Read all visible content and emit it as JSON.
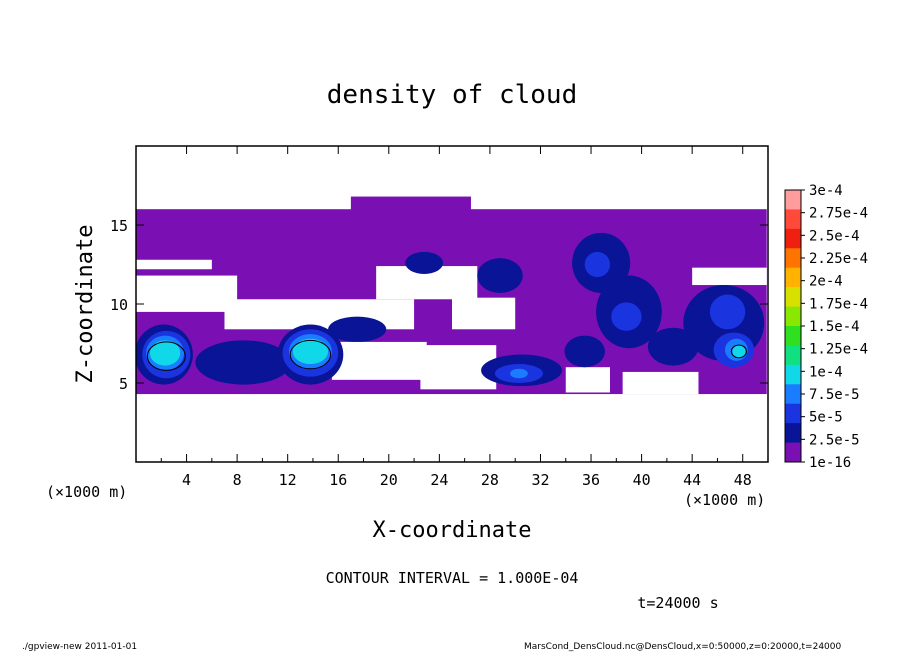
{
  "chart_data": {
    "type": "heatmap",
    "title": "density of cloud",
    "xlabel": "X-coordinate",
    "ylabel": "Z-coordinate",
    "x_unit": "(×1000 m)",
    "x_unit_right": "(×1000 m)",
    "xlim": [
      0,
      50
    ],
    "ylim": [
      0,
      20
    ],
    "x_ticks": [
      "4",
      "8",
      "12",
      "16",
      "20",
      "24",
      "28",
      "32",
      "36",
      "40",
      "44",
      "48"
    ],
    "y_ticks": [
      "5",
      "10",
      "15"
    ],
    "colorbar": {
      "labels": [
        "3e-4",
        "2.75e-4",
        "2.5e-4",
        "2.25e-4",
        "2e-4",
        "1.75e-4",
        "1.5e-4",
        "1.25e-4",
        "1e-4",
        "7.5e-5",
        "5e-5",
        "2.5e-5",
        "1e-16"
      ],
      "colors": [
        "#ff9c9c",
        "#ff4a3a",
        "#f02010",
        "#ff7400",
        "#ffb300",
        "#d8e000",
        "#8ae800",
        "#2ee020",
        "#10e080",
        "#10d8e8",
        "#1a7cff",
        "#1a34e0",
        "#0a1496",
        "#7a10b4"
      ]
    },
    "contour_interval": "CONTOUR INTERVAL = 1.000E-04",
    "time_label": "t=24000 s",
    "regions": [
      {
        "kind": "base",
        "level": 0,
        "xr": [
          0,
          49.9
        ],
        "zr": [
          4.3,
          16
        ]
      },
      {
        "kind": "base",
        "level": 0,
        "xr": [
          17,
          26.5
        ],
        "zr": [
          15.7,
          16.8
        ]
      },
      {
        "kind": "gap",
        "xr": [
          0,
          8
        ],
        "zr": [
          9.5,
          11.8
        ]
      },
      {
        "kind": "gap",
        "xr": [
          7,
          22
        ],
        "zr": [
          8.4,
          10.3
        ]
      },
      {
        "kind": "gap",
        "xr": [
          19,
          27
        ],
        "zr": [
          10.3,
          12.4
        ]
      },
      {
        "kind": "gap",
        "xr": [
          25,
          30
        ],
        "zr": [
          8.4,
          10.4
        ]
      },
      {
        "kind": "gap",
        "xr": [
          15.5,
          23
        ],
        "zr": [
          5.2,
          7.6
        ]
      },
      {
        "kind": "gap",
        "xr": [
          22.5,
          28.5
        ],
        "zr": [
          4.6,
          7.4
        ]
      },
      {
        "kind": "gap",
        "xr": [
          34,
          37.5
        ],
        "zr": [
          4.4,
          6.0
        ]
      },
      {
        "kind": "gap",
        "xr": [
          38.5,
          44.5
        ],
        "zr": [
          4.3,
          5.7
        ]
      },
      {
        "kind": "gap",
        "xr": [
          44,
          49.9
        ],
        "zr": [
          11.2,
          12.3
        ]
      },
      {
        "kind": "gap",
        "xr": [
          0,
          6
        ],
        "zr": [
          12.2,
          12.8
        ]
      },
      {
        "kind": "blob",
        "level": 1,
        "cx": 2.2,
        "cz": 6.8,
        "rx": 2.3,
        "rz": 1.9
      },
      {
        "kind": "blob",
        "level": 1,
        "cx": 13.8,
        "cz": 6.8,
        "rx": 2.6,
        "rz": 1.9
      },
      {
        "kind": "blob",
        "level": 1,
        "cx": 8.5,
        "cz": 6.3,
        "rx": 3.8,
        "rz": 1.4
      },
      {
        "kind": "blob",
        "level": 1,
        "cx": 30.5,
        "cz": 5.8,
        "rx": 3.2,
        "rz": 1.0
      },
      {
        "kind": "blob",
        "level": 1,
        "cx": 39,
        "cz": 9.5,
        "rx": 2.6,
        "rz": 2.3
      },
      {
        "kind": "blob",
        "level": 1,
        "cx": 46.5,
        "cz": 8.8,
        "rx": 3.2,
        "rz": 2.4
      },
      {
        "kind": "blob",
        "level": 1,
        "cx": 42.5,
        "cz": 7.3,
        "rx": 2.0,
        "rz": 1.2
      },
      {
        "kind": "blob",
        "level": 1,
        "cx": 36.8,
        "cz": 12.6,
        "rx": 2.3,
        "rz": 1.9
      },
      {
        "kind": "blob",
        "level": 1,
        "cx": 35.5,
        "cz": 7.0,
        "rx": 1.6,
        "rz": 1.0
      },
      {
        "kind": "blob",
        "level": 1,
        "cx": 17.5,
        "cz": 8.4,
        "rx": 2.3,
        "rz": 0.8
      },
      {
        "kind": "blob",
        "level": 1,
        "cx": 22.8,
        "cz": 12.6,
        "rx": 1.5,
        "rz": 0.7
      },
      {
        "kind": "blob",
        "level": 1,
        "cx": 28.8,
        "cz": 11.8,
        "rx": 1.8,
        "rz": 1.1
      },
      {
        "kind": "blob",
        "level": 2,
        "cx": 2.4,
        "cz": 6.8,
        "rx": 1.9,
        "rz": 1.5
      },
      {
        "kind": "blob",
        "level": 2,
        "cx": 13.8,
        "cz": 6.9,
        "rx": 2.2,
        "rz": 1.5
      },
      {
        "kind": "blob",
        "level": 2,
        "cx": 47.3,
        "cz": 7.1,
        "rx": 1.6,
        "rz": 1.1
      },
      {
        "kind": "blob",
        "level": 2,
        "cx": 30.3,
        "cz": 5.6,
        "rx": 1.9,
        "rz": 0.6
      },
      {
        "kind": "blob",
        "level": 2,
        "cx": 46.8,
        "cz": 9.5,
        "rx": 1.4,
        "rz": 1.1
      },
      {
        "kind": "blob",
        "level": 2,
        "cx": 38.8,
        "cz": 9.2,
        "rx": 1.2,
        "rz": 0.9
      },
      {
        "kind": "blob",
        "level": 2,
        "cx": 36.5,
        "cz": 12.5,
        "rx": 1.0,
        "rz": 0.8
      },
      {
        "kind": "blob",
        "level": 3,
        "cx": 2.3,
        "cz": 6.9,
        "rx": 1.5,
        "rz": 1.1
      },
      {
        "kind": "blob",
        "level": 3,
        "cx": 13.8,
        "cz": 7.0,
        "rx": 1.7,
        "rz": 1.1
      },
      {
        "kind": "blob",
        "level": 3,
        "cx": 47.5,
        "cz": 7.1,
        "rx": 0.9,
        "rz": 0.7
      },
      {
        "kind": "blob",
        "level": 3,
        "cx": 30.3,
        "cz": 5.6,
        "rx": 0.7,
        "rz": 0.3
      },
      {
        "kind": "blob",
        "level": 4,
        "cx": 2.3,
        "cz": 6.9,
        "rx": 1.2,
        "rz": 0.8
      },
      {
        "kind": "blob",
        "level": 4,
        "cx": 13.8,
        "cz": 7.0,
        "rx": 1.4,
        "rz": 0.8
      },
      {
        "kind": "blob",
        "level": 4,
        "cx": 47.7,
        "cz": 7.0,
        "rx": 0.5,
        "rz": 0.4
      },
      {
        "kind": "contour",
        "cx": 2.4,
        "cz": 6.7,
        "rx": 1.5,
        "rz": 0.9
      },
      {
        "kind": "contour",
        "cx": 13.8,
        "cz": 6.8,
        "rx": 1.6,
        "rz": 0.9
      },
      {
        "kind": "contour",
        "cx": 47.7,
        "cz": 7.0,
        "rx": 0.6,
        "rz": 0.4
      }
    ]
  },
  "footer": {
    "left": "./gpview-new   2011-01-01",
    "right": "MarsCond_DensCloud.nc@DensCloud,x=0:50000,z=0:20000,t=24000"
  }
}
